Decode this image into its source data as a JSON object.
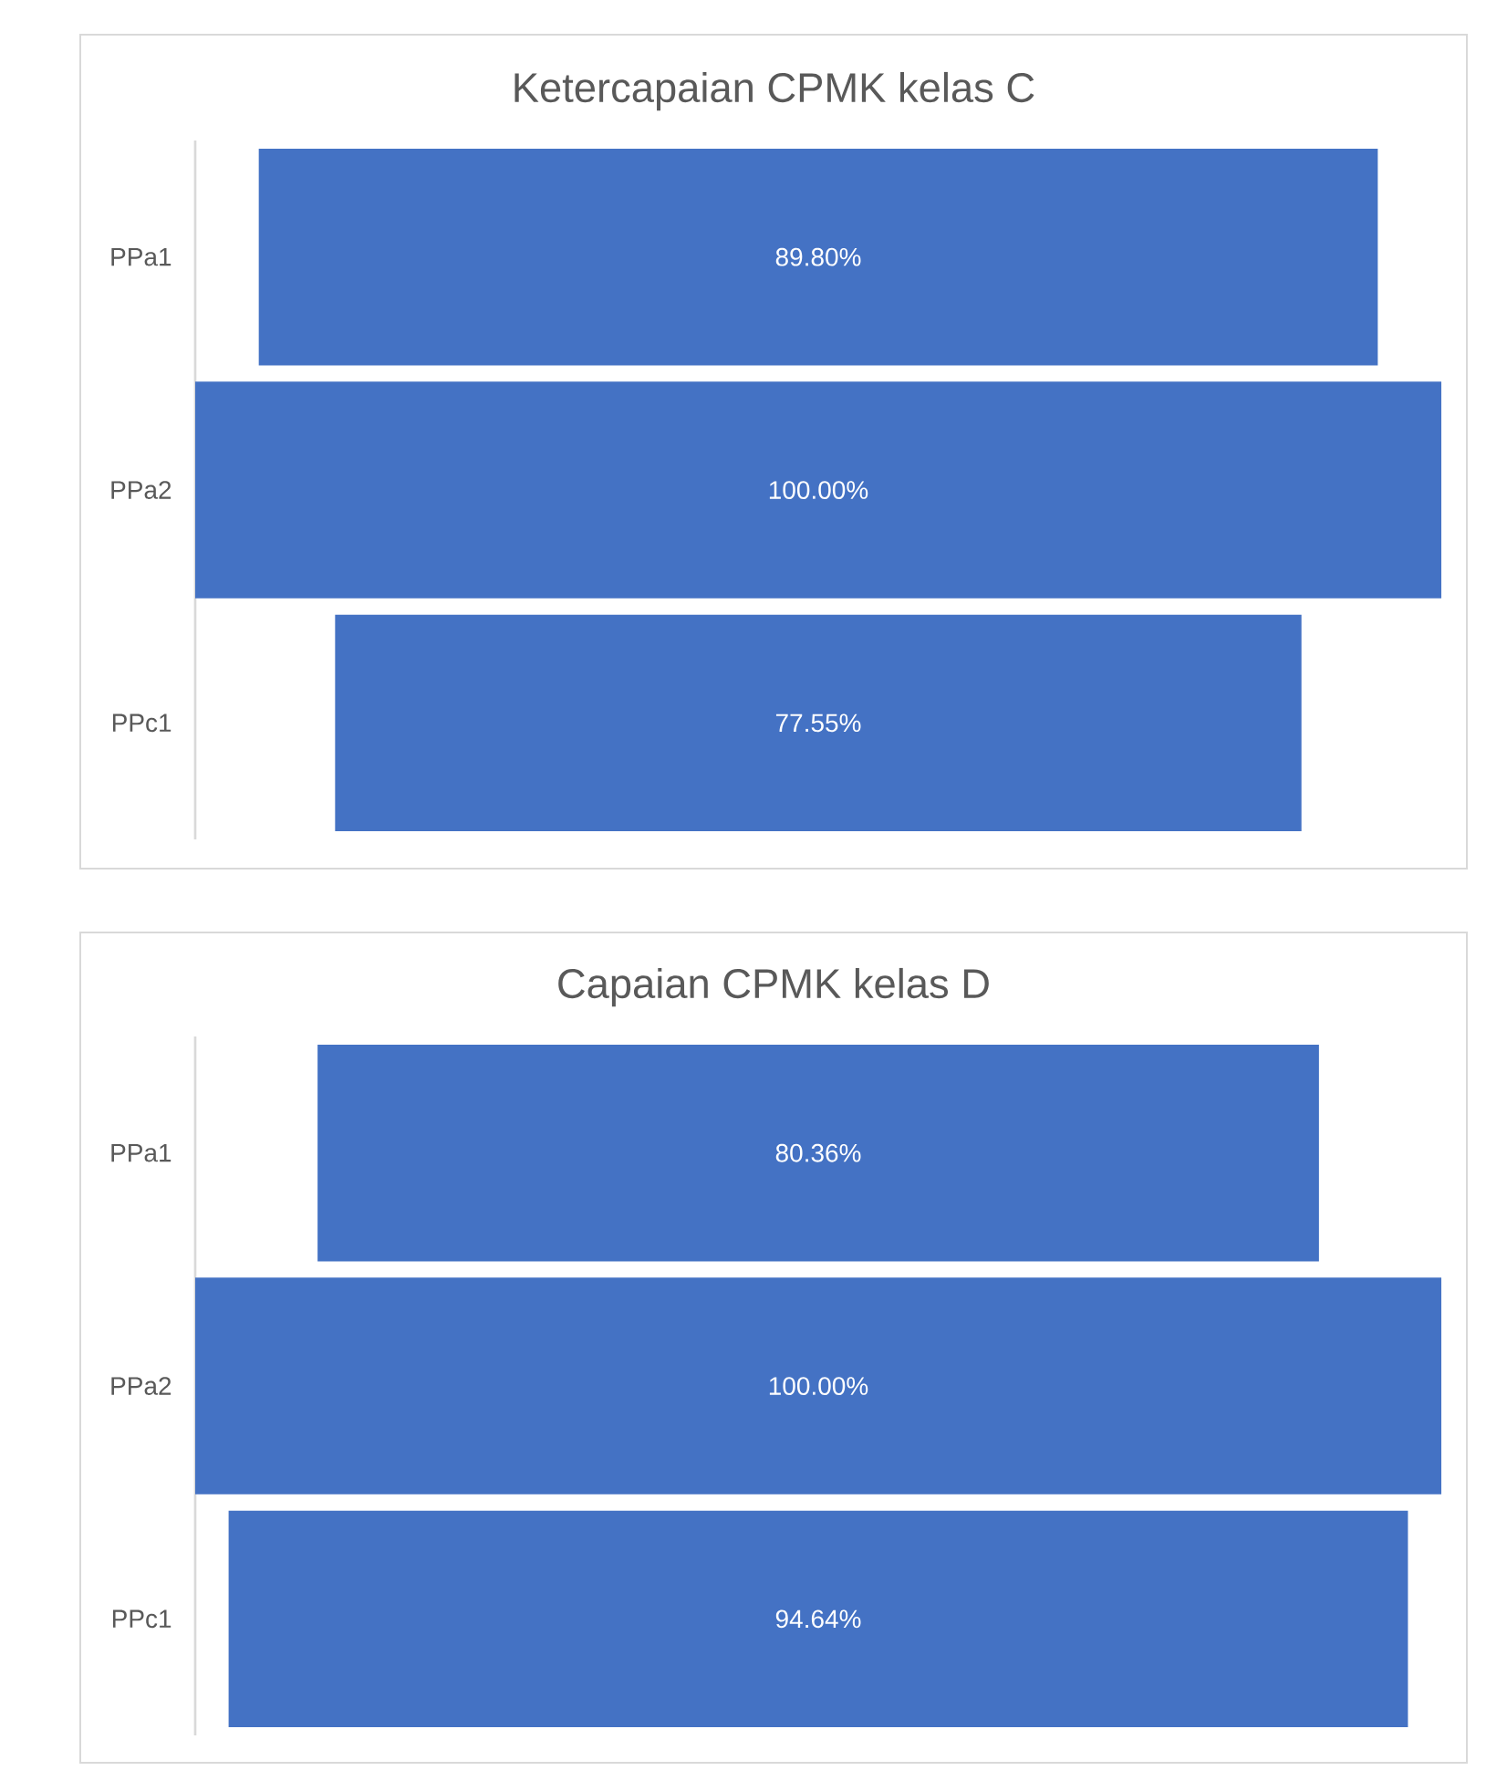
{
  "chart_data": [
    {
      "type": "other",
      "title": "Ketercapaian CPMK kelas C",
      "categories": [
        "PPa1",
        "PPa2",
        "PPc1"
      ],
      "values": [
        89.8,
        100,
        77.55
      ],
      "value_labels": [
        "89.80%",
        "100.00%",
        "77.55%"
      ],
      "color": "#4472c4"
    },
    {
      "type": "other",
      "title": "Capaian CPMK kelas D",
      "categories": [
        "PPa1",
        "PPa2",
        "PPc1"
      ],
      "values": [
        80.36,
        100,
        94.64
      ],
      "value_labels": [
        "80.36%",
        "100.00%",
        "94.64%"
      ],
      "color": "#4472c4"
    }
  ]
}
